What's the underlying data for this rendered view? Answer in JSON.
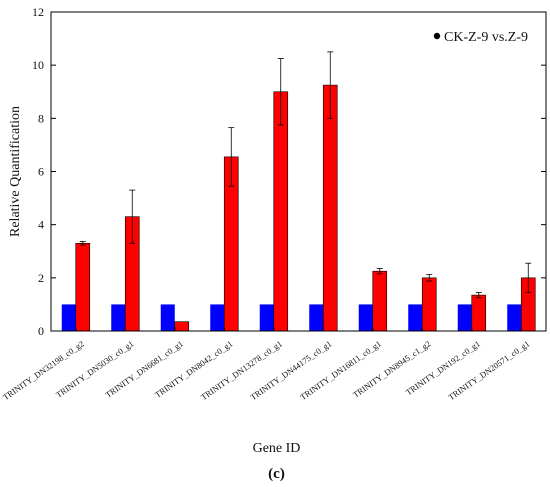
{
  "chart_data": {
    "type": "bar",
    "ylabel": "Relative Quantification",
    "xlabel": "Gene ID",
    "panel_label": "(c)",
    "ylim": [
      0,
      12
    ],
    "yticks": [
      0,
      2,
      4,
      6,
      8,
      10,
      12
    ],
    "categories": [
      "TRINITY_DN32198_c0_g2",
      "TRINITY_DN5030_c0_g1",
      "TRINITY_DN6681_c0_g1",
      "TRINITY_DN8042_c0_g1",
      "TRINITY_DN13278_c0_g1",
      "TRINITY_DN44175_c0_g1",
      "TRINITY_DN16811_c0_g1",
      "TRINITY_DN8945_c1_g2",
      "TRINITY_DN192_c0_g1",
      "TRINITY_DN20571_c0_g1"
    ],
    "series": [
      {
        "values": [
          1,
          1,
          1,
          1,
          1,
          1,
          1,
          1,
          1,
          1
        ],
        "color": "#0000ff"
      },
      {
        "values": [
          3.3,
          4.3,
          0.35,
          6.55,
          9.0,
          9.25,
          2.25,
          2.0,
          1.35,
          2.0
        ],
        "errors": [
          0.07,
          1.0,
          0.0,
          1.1,
          1.25,
          1.25,
          0.1,
          0.12,
          0.1,
          0.55
        ],
        "color": "#ff0000"
      }
    ],
    "legend": {
      "label": "CK-Z-9 vs.Z-9",
      "placement": "top-right"
    },
    "grid": false
  }
}
